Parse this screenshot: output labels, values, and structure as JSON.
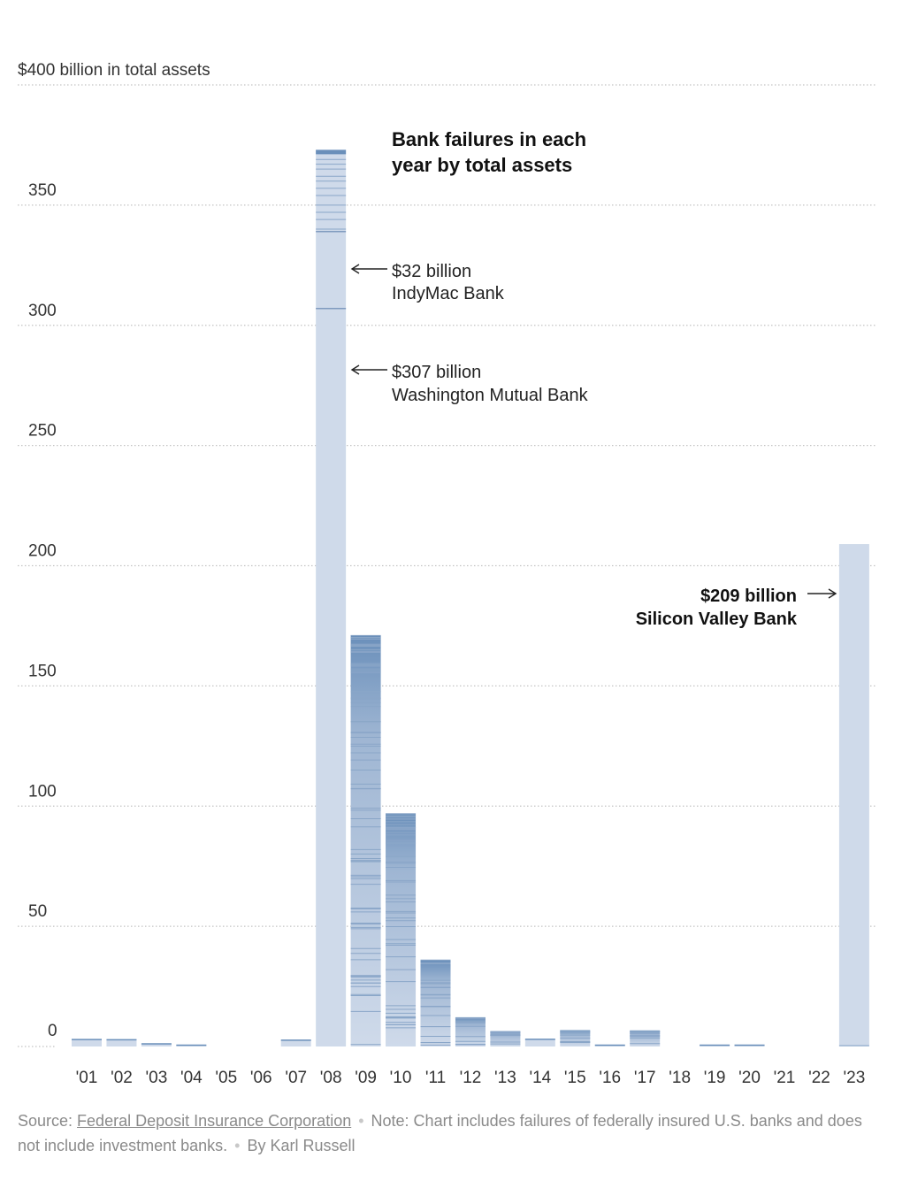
{
  "chart_data": {
    "type": "bar",
    "title": "Bank failures in each year by total assets",
    "title_lines": [
      "Bank failures in each",
      "year by total assets"
    ],
    "ylabel": "$400 billion in total assets",
    "ylim": [
      0,
      400
    ],
    "y_ticks": [
      {
        "value": 0,
        "label": "0"
      },
      {
        "value": 50,
        "label": "50"
      },
      {
        "value": 100,
        "label": "100"
      },
      {
        "value": 150,
        "label": "150"
      },
      {
        "value": 200,
        "label": "200"
      },
      {
        "value": 250,
        "label": "250"
      },
      {
        "value": 300,
        "label": "300"
      },
      {
        "value": 350,
        "label": "350"
      },
      {
        "value": 400,
        "label": "$400 billion in total assets"
      }
    ],
    "categories": [
      "'01",
      "'02",
      "'03",
      "'04",
      "'05",
      "'06",
      "'07",
      "'08",
      "'09",
      "'10",
      "'11",
      "'12",
      "'13",
      "'14",
      "'15",
      "'16",
      "'17",
      "'18",
      "'19",
      "'20",
      "'21",
      "'22",
      "'23"
    ],
    "values": [
      2.9,
      2.8,
      1.1,
      0.2,
      0,
      0,
      2.6,
      373,
      171,
      97,
      36,
      12,
      6.4,
      3.0,
      6.7,
      0.3,
      6.7,
      0,
      0.2,
      0.5,
      0,
      0,
      209
    ],
    "annotations": [
      {
        "category": "'08",
        "value_label": "$32 billion",
        "bank": "IndyMac Bank"
      },
      {
        "category": "'08",
        "value_label": "$307 billion",
        "bank": "Washington Mutual Bank"
      },
      {
        "category": "'23",
        "value_label": "$209 billion",
        "bank": "Silicon Valley Bank"
      }
    ],
    "colors": {
      "light": "#cfdaea",
      "dark": "#6a8fba",
      "stripe": "#8aa6c8",
      "grid": "#c4c4c4",
      "arrow": "#222222"
    }
  },
  "footer": {
    "source_prefix": "Source: ",
    "source_name": "Federal Deposit Insurance Corporation",
    "note": "Note: Chart includes failures of federally insured U.S. banks and does not include investment banks.",
    "byline": "By Karl Russell"
  }
}
